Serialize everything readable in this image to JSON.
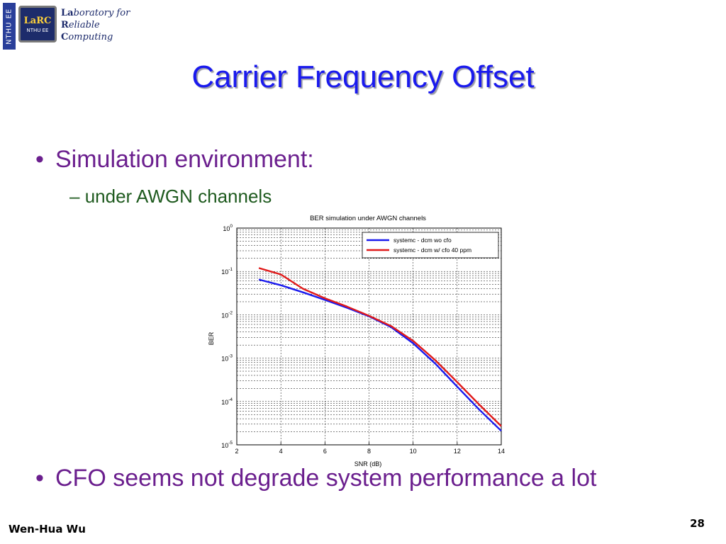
{
  "logo": {
    "side_text": "NTHU EE",
    "chip_mark": "LaRC",
    "chip_sub": "NTHU EE",
    "line1_bold": "La",
    "line1_rest": "boratory for",
    "line2_bold": "R",
    "line2_rest": "eliable",
    "line3_bold": "C",
    "line3_rest": "omputing"
  },
  "slide": {
    "title": "Carrier Frequency Offset",
    "bullet1": "Simulation environment:",
    "sub1": "under AWGN channels",
    "bullet2": "CFO seems not degrade system performance a lot",
    "bullet_symbol": "•",
    "sub_symbol": "–",
    "author": "Wen-Hua Wu",
    "page": "28"
  },
  "colors": {
    "title": "#1a1aee",
    "bullet": "#6b1f8e",
    "sub": "#1e5a1e",
    "series1": "#1a1aee",
    "series2": "#e01a1a"
  },
  "chart_data": {
    "type": "line",
    "title": "BER simulation under AWGN channels",
    "xlabel": "SNR (dB)",
    "ylabel": "BER",
    "xlim": [
      2,
      14
    ],
    "ylim": [
      1e-05,
      1
    ],
    "yscale": "log",
    "grid": true,
    "legend_position": "top-right",
    "xticks": [
      2,
      4,
      6,
      8,
      10,
      12,
      14
    ],
    "yticks": [
      {
        "base": "10",
        "exp": "0"
      },
      {
        "base": "10",
        "exp": "-1"
      },
      {
        "base": "10",
        "exp": "-2"
      },
      {
        "base": "10",
        "exp": "-3"
      },
      {
        "base": "10",
        "exp": "-4"
      },
      {
        "base": "10",
        "exp": "-5"
      }
    ],
    "series": [
      {
        "name": "systemc - dcm wo cfo",
        "color": "#1a1aee",
        "x": [
          3,
          4,
          5,
          6,
          7,
          8,
          9,
          10,
          11,
          12,
          13,
          14
        ],
        "y": [
          0.065,
          0.048,
          0.033,
          0.022,
          0.0145,
          0.0092,
          0.0052,
          0.0022,
          0.00075,
          0.00022,
          6.5e-05,
          2.1e-05
        ]
      },
      {
        "name": "systemc - dcm w/ cfo 40 ppm",
        "color": "#e01a1a",
        "x": [
          3,
          4,
          5,
          6,
          7,
          8,
          9,
          10,
          11,
          12,
          13,
          14
        ],
        "y": [
          0.12,
          0.085,
          0.04,
          0.024,
          0.0155,
          0.0095,
          0.0055,
          0.0025,
          0.0009,
          0.00028,
          8.5e-05,
          2.7e-05
        ]
      }
    ]
  }
}
